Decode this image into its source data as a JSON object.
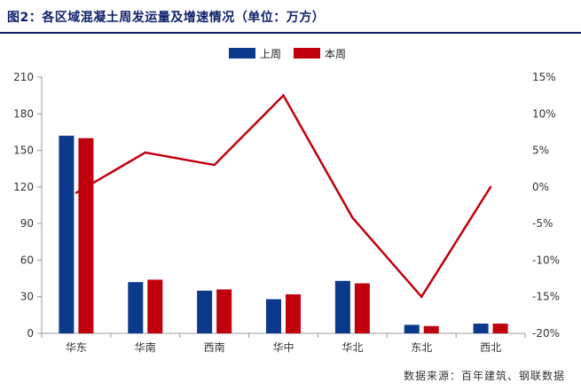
{
  "header": {
    "title": "图2：各区域混凝土周发运量及增速情况（单位：万方）"
  },
  "footer": {
    "source": "数据来源：百年建筑、钢联数据"
  },
  "colors": {
    "title": "#0d1f6b",
    "prev_week": "#0b3a8c",
    "this_week": "#c0000d",
    "growth_line": "#c0000d",
    "axis": "#999999"
  },
  "chart_data": {
    "type": "bar",
    "categories": [
      "华东",
      "华南",
      "西南",
      "华中",
      "华北",
      "东北",
      "西北"
    ],
    "series": [
      {
        "name": "上周",
        "kind": "bar",
        "axis": "left",
        "color": "#0b3a8c",
        "values": [
          162,
          42,
          35,
          28,
          43,
          7,
          8
        ]
      },
      {
        "name": "本周",
        "kind": "bar",
        "axis": "left",
        "color": "#c0000d",
        "values": [
          160,
          44,
          36,
          32,
          41,
          6,
          8
        ]
      },
      {
        "kind": "line",
        "axis": "right",
        "color": "#c0000d",
        "values": [
          -0.8,
          4.7,
          3.0,
          12.5,
          -4.2,
          -15.0,
          0.0
        ]
      }
    ],
    "left_axis": {
      "min": 0,
      "max": 210,
      "ticks": [
        "0",
        "30",
        "60",
        "90",
        "120",
        "150",
        "180",
        "210"
      ]
    },
    "right_axis": {
      "min": -20,
      "max": 15,
      "ticks": [
        "-20%",
        "-15%",
        "-10%",
        "-5%",
        "0%",
        "5%",
        "10%",
        "15%"
      ]
    },
    "legend": {
      "position": "top-center",
      "entries": [
        "上周",
        "本周"
      ]
    },
    "grid": false
  }
}
